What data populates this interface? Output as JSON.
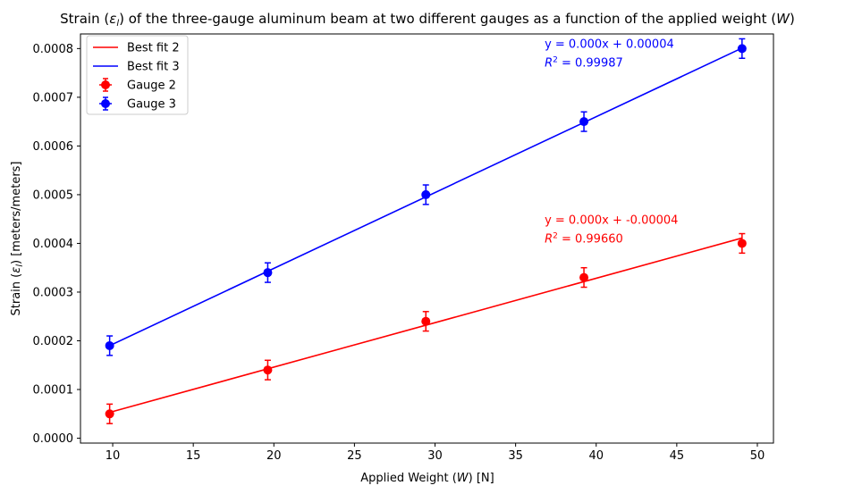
{
  "chart_data": {
    "type": "scatter",
    "title_parts": [
      "Strain (",
      "ε",
      "l",
      ") of the three-gauge aluminum beam at two different gauges as a function of the applied weight (",
      "W",
      ")"
    ],
    "xlabel_parts": [
      "Applied Weight (",
      "W",
      ") [N]"
    ],
    "ylabel_parts": [
      "Strain (",
      "ε",
      "l",
      ") [meters/meters]"
    ],
    "xlim": [
      8.0,
      51.0
    ],
    "ylim": [
      -1e-05,
      0.00083
    ],
    "x_ticks": [
      10,
      15,
      20,
      25,
      30,
      35,
      40,
      45,
      50
    ],
    "x_tick_labels": [
      "10",
      "15",
      "20",
      "25",
      "30",
      "35",
      "40",
      "45",
      "50"
    ],
    "y_ticks": [
      0.0,
      0.0001,
      0.0002,
      0.0003,
      0.0004,
      0.0005,
      0.0006,
      0.0007,
      0.0008
    ],
    "y_tick_labels": [
      "0.0000",
      "0.0001",
      "0.0002",
      "0.0003",
      "0.0004",
      "0.0005",
      "0.0006",
      "0.0007",
      "0.0008"
    ],
    "grid": false,
    "legend_position": "top-left",
    "legend": [
      {
        "label": "Best fit 2",
        "kind": "line",
        "color": "#ff0000"
      },
      {
        "label": "Best fit 3",
        "kind": "line",
        "color": "#0000ff"
      },
      {
        "label": "Gauge 2",
        "kind": "errorbar",
        "color": "#ff0000"
      },
      {
        "label": "Gauge 3",
        "kind": "errorbar",
        "color": "#0000ff"
      }
    ],
    "series": [
      {
        "name": "Gauge 2",
        "color": "#ff0000",
        "x": [
          9.81,
          19.62,
          29.43,
          39.24,
          49.05
        ],
        "y": [
          5e-05,
          0.00014,
          0.00024,
          0.00033,
          0.0004
        ],
        "y_err": 2e-05,
        "x_err": 0.2
      },
      {
        "name": "Gauge 3",
        "color": "#0000ff",
        "x": [
          9.81,
          19.62,
          29.43,
          39.24,
          49.05
        ],
        "y": [
          0.00019,
          0.00034,
          0.0005,
          0.00065,
          0.0008
        ],
        "y_err": 2e-05,
        "x_err": 0.2
      }
    ],
    "fits": [
      {
        "name": "Best fit 2",
        "color": "#ff0000",
        "x": [
          9.81,
          49.05
        ],
        "y": [
          5.3e-05,
          0.000411
        ],
        "annotation_eq": "y = 0.000x + -0.00004",
        "annotation_r2_value": " = 0.99660",
        "annotation_x": 36.8,
        "annotation_y": 0.00044
      },
      {
        "name": "Best fit 3",
        "color": "#0000ff",
        "x": [
          9.81,
          49.05
        ],
        "y": [
          0.00019,
          0.000801
        ],
        "annotation_eq": "y = 0.000x + 0.00004",
        "annotation_r2_value": " = 0.99987",
        "annotation_x": 36.8,
        "annotation_y": 0.000802
      }
    ]
  }
}
